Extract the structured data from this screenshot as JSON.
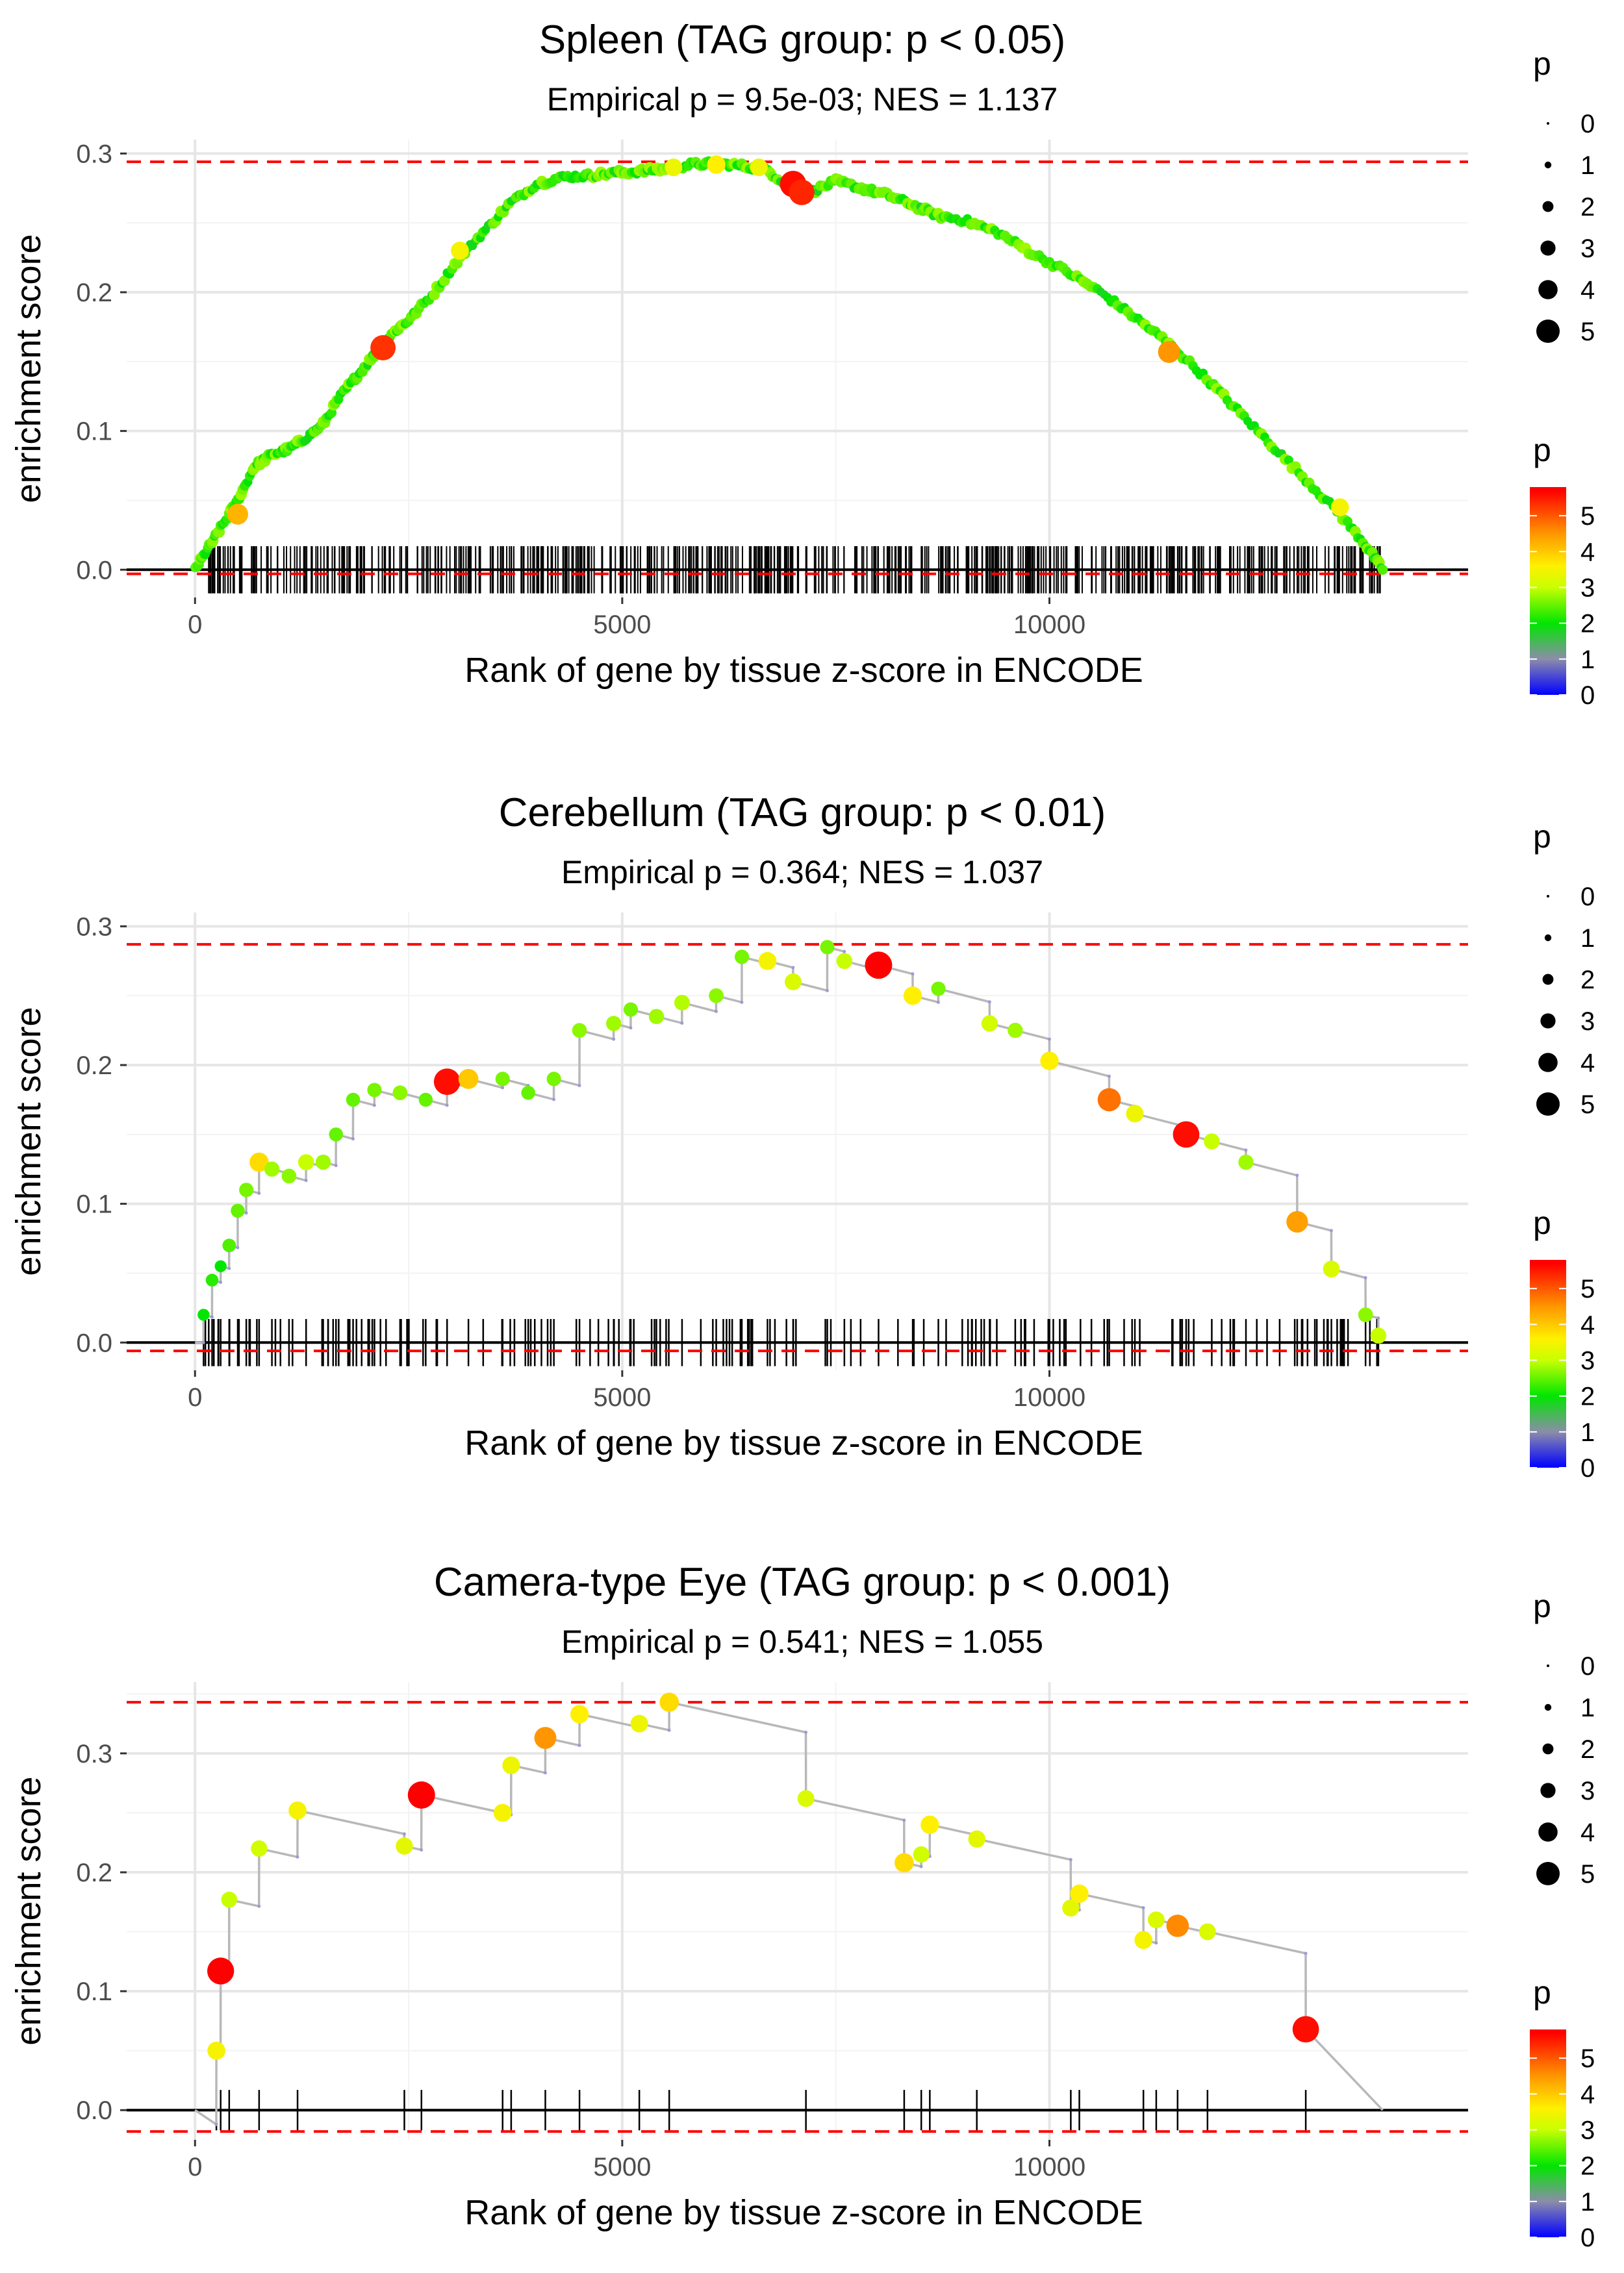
{
  "chart_data": [
    {
      "type": "line",
      "title": "Spleen (TAG group: p < 0.05)",
      "subtitle": "Empirical p = 9.5e-03; NES = 1.137",
      "xlabel": "Rank of gene by tissue z-score in ENCODE",
      "ylabel": "enrichment score",
      "xlim": [
        -800,
        14900
      ],
      "ylim": [
        -0.02,
        0.31
      ],
      "x_ticks": [
        0,
        5000,
        10000
      ],
      "x_tick_labels": [
        "0",
        "5000",
        "10000"
      ],
      "y_ticks": [
        0.0,
        0.1,
        0.2,
        0.3
      ],
      "y_tick_labels": [
        "0.0",
        "0.1",
        "0.2",
        "0.3"
      ],
      "max_es": 0.294,
      "min_es": -0.003,
      "n_genes": 13900,
      "dense_ticks": 600,
      "curve_type": "dense",
      "curve_x": [
        0,
        150,
        300,
        500,
        700,
        900,
        1100,
        1300,
        1500,
        1700,
        1900,
        2100,
        2300,
        2500,
        2800,
        3100,
        3400,
        3700,
        4000,
        4300,
        4600,
        4900,
        5200,
        5500,
        5800,
        6100,
        6400,
        6700,
        7000,
        7200,
        7500,
        7800,
        8100,
        8400,
        8700,
        9000,
        9400,
        9800,
        10200,
        10600,
        11000,
        11400,
        11800,
        12200,
        12600,
        13000,
        13400,
        13700,
        13900
      ],
      "curve_y": [
        0.0,
        0.015,
        0.03,
        0.05,
        0.075,
        0.083,
        0.087,
        0.095,
        0.105,
        0.125,
        0.14,
        0.155,
        0.17,
        0.18,
        0.2,
        0.225,
        0.245,
        0.265,
        0.278,
        0.283,
        0.284,
        0.286,
        0.287,
        0.289,
        0.292,
        0.293,
        0.291,
        0.288,
        0.274,
        0.272,
        0.28,
        0.275,
        0.27,
        0.263,
        0.255,
        0.252,
        0.243,
        0.228,
        0.215,
        0.2,
        0.182,
        0.163,
        0.14,
        0.115,
        0.09,
        0.065,
        0.04,
        0.018,
        0.0
      ],
      "highlight_points": [
        {
          "x": 500,
          "y": 0.04,
          "p": 4.2
        },
        {
          "x": 2200,
          "y": 0.16,
          "p": 5.3
        },
        {
          "x": 3100,
          "y": 0.23,
          "p": 3.5
        },
        {
          "x": 5600,
          "y": 0.29,
          "p": 3.4
        },
        {
          "x": 6100,
          "y": 0.292,
          "p": 3.6
        },
        {
          "x": 6600,
          "y": 0.29,
          "p": 3.4
        },
        {
          "x": 7000,
          "y": 0.278,
          "p": 5.6
        },
        {
          "x": 7100,
          "y": 0.272,
          "p": 5.4
        },
        {
          "x": 11400,
          "y": 0.157,
          "p": 4.5
        },
        {
          "x": 13400,
          "y": 0.045,
          "p": 3.5
        }
      ],
      "size_legend": {
        "title": "p",
        "labels": [
          "0",
          "1",
          "2",
          "3",
          "4",
          "5"
        ]
      },
      "color_legend": {
        "title": "p",
        "labels": [
          "0",
          "1",
          "2",
          "3",
          "4",
          "5"
        ],
        "colors": [
          "#0000ff",
          "#888888",
          "#00ff00",
          "#ffff00",
          "#ff8c00",
          "#ff0000"
        ]
      }
    },
    {
      "type": "line",
      "title": "Cerebellum (TAG group: p < 0.01)",
      "subtitle": "Empirical p = 0.364; NES = 1.037",
      "xlabel": "Rank of gene by tissue z-score in ENCODE",
      "ylabel": "enrichment score",
      "xlim": [
        -800,
        14900
      ],
      "ylim": [
        -0.02,
        0.31
      ],
      "x_ticks": [
        0,
        5000,
        10000
      ],
      "x_tick_labels": [
        "0",
        "5000",
        "10000"
      ],
      "y_ticks": [
        0.0,
        0.1,
        0.2,
        0.3
      ],
      "y_tick_labels": [
        "0.0",
        "0.1",
        "0.2",
        "0.3"
      ],
      "max_es": 0.287,
      "min_es": -0.006,
      "n_genes": 13900,
      "curve_type": "sawtooth",
      "hits": [
        {
          "x": 100,
          "y": 0.02,
          "p": 2.0
        },
        {
          "x": 200,
          "y": 0.045,
          "p": 2.2
        },
        {
          "x": 300,
          "y": 0.055,
          "p": 2.0
        },
        {
          "x": 400,
          "y": 0.07,
          "p": 2.4
        },
        {
          "x": 500,
          "y": 0.095,
          "p": 2.5
        },
        {
          "x": 600,
          "y": 0.11,
          "p": 2.6
        },
        {
          "x": 750,
          "y": 0.13,
          "p": 3.8
        },
        {
          "x": 900,
          "y": 0.125,
          "p": 2.8
        },
        {
          "x": 1100,
          "y": 0.12,
          "p": 2.7
        },
        {
          "x": 1300,
          "y": 0.13,
          "p": 3.0
        },
        {
          "x": 1500,
          "y": 0.13,
          "p": 2.8
        },
        {
          "x": 1650,
          "y": 0.15,
          "p": 2.5
        },
        {
          "x": 1850,
          "y": 0.175,
          "p": 2.5
        },
        {
          "x": 2100,
          "y": 0.182,
          "p": 2.6
        },
        {
          "x": 2400,
          "y": 0.18,
          "p": 2.7
        },
        {
          "x": 2700,
          "y": 0.175,
          "p": 2.5
        },
        {
          "x": 2950,
          "y": 0.188,
          "p": 5.6
        },
        {
          "x": 3200,
          "y": 0.19,
          "p": 4.0
        },
        {
          "x": 3600,
          "y": 0.19,
          "p": 2.6
        },
        {
          "x": 3900,
          "y": 0.18,
          "p": 2.5
        },
        {
          "x": 4200,
          "y": 0.19,
          "p": 2.6
        },
        {
          "x": 4500,
          "y": 0.225,
          "p": 2.7
        },
        {
          "x": 4900,
          "y": 0.23,
          "p": 2.8
        },
        {
          "x": 5100,
          "y": 0.24,
          "p": 2.6
        },
        {
          "x": 5400,
          "y": 0.235,
          "p": 2.8
        },
        {
          "x": 5700,
          "y": 0.245,
          "p": 2.9
        },
        {
          "x": 6100,
          "y": 0.25,
          "p": 2.7
        },
        {
          "x": 6400,
          "y": 0.278,
          "p": 2.6
        },
        {
          "x": 6700,
          "y": 0.275,
          "p": 3.5
        },
        {
          "x": 7000,
          "y": 0.26,
          "p": 3.2
        },
        {
          "x": 7400,
          "y": 0.285,
          "p": 2.6
        },
        {
          "x": 7600,
          "y": 0.275,
          "p": 3.0
        },
        {
          "x": 8000,
          "y": 0.272,
          "p": 5.8
        },
        {
          "x": 8400,
          "y": 0.25,
          "p": 3.6
        },
        {
          "x": 8700,
          "y": 0.255,
          "p": 2.6
        },
        {
          "x": 9300,
          "y": 0.23,
          "p": 3.1
        },
        {
          "x": 9600,
          "y": 0.225,
          "p": 2.8
        },
        {
          "x": 10000,
          "y": 0.203,
          "p": 3.6
        },
        {
          "x": 10700,
          "y": 0.175,
          "p": 4.8
        },
        {
          "x": 11000,
          "y": 0.165,
          "p": 3.4
        },
        {
          "x": 11600,
          "y": 0.15,
          "p": 5.6
        },
        {
          "x": 11900,
          "y": 0.145,
          "p": 3.0
        },
        {
          "x": 12300,
          "y": 0.13,
          "p": 2.8
        },
        {
          "x": 12900,
          "y": 0.087,
          "p": 4.4
        },
        {
          "x": 13300,
          "y": 0.053,
          "p": 3.2
        },
        {
          "x": 13700,
          "y": 0.02,
          "p": 2.7
        },
        {
          "x": 13850,
          "y": 0.005,
          "p": 3.0
        }
      ],
      "end_x": 13900,
      "size_legend": {
        "title": "p",
        "labels": [
          "0",
          "1",
          "2",
          "3",
          "4",
          "5"
        ]
      },
      "color_legend": {
        "title": "p",
        "labels": [
          "0",
          "1",
          "2",
          "3",
          "4",
          "5"
        ],
        "colors": [
          "#0000ff",
          "#888888",
          "#00ff00",
          "#ffff00",
          "#ff8c00",
          "#ff0000"
        ]
      }
    },
    {
      "type": "line",
      "title": "Camera-type Eye (TAG group: p < 0.001)",
      "subtitle": "Empirical p = 0.541; NES = 1.055",
      "xlabel": "Rank of gene by tissue z-score in ENCODE",
      "ylabel": "enrichment score",
      "xlim": [
        -800,
        14900
      ],
      "ylim": [
        -0.025,
        0.36
      ],
      "x_ticks": [
        0,
        5000,
        10000
      ],
      "x_tick_labels": [
        "0",
        "5000",
        "10000"
      ],
      "y_ticks": [
        0.0,
        0.1,
        0.2,
        0.3
      ],
      "y_tick_labels": [
        "0.0",
        "0.1",
        "0.2",
        "0.3"
      ],
      "max_es": 0.343,
      "min_es": -0.018,
      "n_genes": 13900,
      "curve_type": "sawtooth",
      "start_y": 0.0,
      "hits": [
        {
          "x": 250,
          "y": 0.05,
          "p": 3.5
        },
        {
          "x": 300,
          "y": 0.117,
          "p": 5.7
        },
        {
          "x": 400,
          "y": 0.177,
          "p": 3.0
        },
        {
          "x": 750,
          "y": 0.22,
          "p": 3.1
        },
        {
          "x": 1200,
          "y": 0.252,
          "p": 3.5
        },
        {
          "x": 2450,
          "y": 0.222,
          "p": 3.3
        },
        {
          "x": 2650,
          "y": 0.265,
          "p": 5.8
        },
        {
          "x": 3600,
          "y": 0.25,
          "p": 3.5
        },
        {
          "x": 3700,
          "y": 0.29,
          "p": 3.4
        },
        {
          "x": 4100,
          "y": 0.313,
          "p": 4.5
        },
        {
          "x": 4500,
          "y": 0.333,
          "p": 3.6
        },
        {
          "x": 5200,
          "y": 0.325,
          "p": 3.4
        },
        {
          "x": 5550,
          "y": 0.343,
          "p": 3.8
        },
        {
          "x": 7150,
          "y": 0.262,
          "p": 3.2
        },
        {
          "x": 8300,
          "y": 0.208,
          "p": 3.8
        },
        {
          "x": 8500,
          "y": 0.215,
          "p": 3.1
        },
        {
          "x": 8600,
          "y": 0.24,
          "p": 3.6
        },
        {
          "x": 9150,
          "y": 0.228,
          "p": 3.3
        },
        {
          "x": 10250,
          "y": 0.17,
          "p": 3.3
        },
        {
          "x": 10350,
          "y": 0.182,
          "p": 3.6
        },
        {
          "x": 11100,
          "y": 0.143,
          "p": 3.5
        },
        {
          "x": 11250,
          "y": 0.16,
          "p": 3.2
        },
        {
          "x": 11500,
          "y": 0.155,
          "p": 4.6
        },
        {
          "x": 11850,
          "y": 0.15,
          "p": 3.2
        },
        {
          "x": 13000,
          "y": 0.068,
          "p": 5.6
        }
      ],
      "end_x": 13900,
      "size_legend": {
        "title": "p",
        "labels": [
          "0",
          "1",
          "2",
          "3",
          "4",
          "5"
        ]
      },
      "color_legend": {
        "title": "p",
        "labels": [
          "0",
          "1",
          "2",
          "3",
          "4",
          "5"
        ],
        "colors": [
          "#0000ff",
          "#888888",
          "#00ff00",
          "#ffff00",
          "#ff8c00",
          "#ff0000"
        ]
      }
    }
  ]
}
